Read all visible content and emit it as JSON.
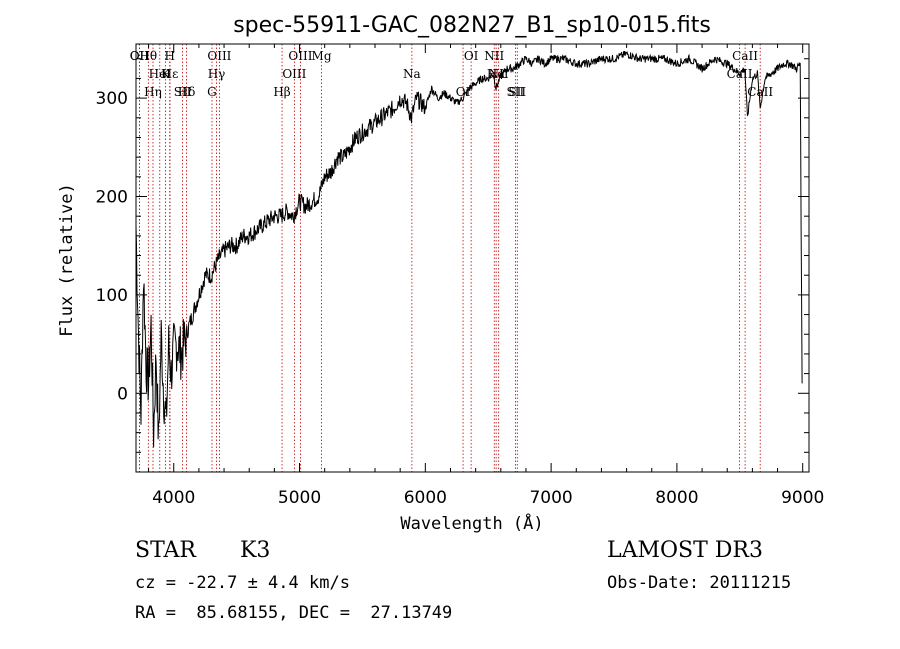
{
  "chart_data": {
    "type": "line",
    "title": "spec-55911-GAC_082N27_B1_sp10-015.fits",
    "xlabel": "Wavelength (Å)",
    "ylabel": "Flux (relative)",
    "xlim": [
      3700,
      9050
    ],
    "ylim": [
      -80,
      355
    ],
    "x_ticks": [
      4000,
      5000,
      6000,
      7000,
      8000,
      9000
    ],
    "y_ticks": [
      0,
      100,
      200,
      300
    ],
    "grid": false,
    "series": [
      {
        "name": "spectrum",
        "x": [
          3700,
          3720,
          3740,
          3760,
          3780,
          3800,
          3820,
          3840,
          3860,
          3880,
          3900,
          3920,
          3940,
          3960,
          3980,
          4000,
          4030,
          4060,
          4100,
          4150,
          4200,
          4250,
          4300,
          4350,
          4400,
          4450,
          4500,
          4550,
          4600,
          4650,
          4700,
          4750,
          4800,
          4850,
          4900,
          4950,
          5000,
          5050,
          5100,
          5150,
          5200,
          5250,
          5300,
          5350,
          5400,
          5450,
          5500,
          5550,
          5600,
          5650,
          5700,
          5750,
          5800,
          5850,
          5890,
          5930,
          6000,
          6050,
          6100,
          6150,
          6200,
          6250,
          6300,
          6350,
          6400,
          6450,
          6500,
          6540,
          6563,
          6590,
          6620,
          6650,
          6700,
          6750,
          6800,
          6850,
          6900,
          6950,
          7000,
          7100,
          7200,
          7300,
          7400,
          7500,
          7600,
          7700,
          7800,
          7900,
          8000,
          8100,
          8200,
          8300,
          8400,
          8500,
          8540,
          8560,
          8600,
          8640,
          8662,
          8700,
          8750,
          8800,
          8850,
          8900,
          8950,
          8980,
          8995
        ],
        "y": [
          170,
          60,
          -20,
          120,
          30,
          10,
          70,
          -40,
          40,
          -50,
          60,
          0,
          -30,
          50,
          20,
          45,
          50,
          40,
          60,
          80,
          100,
          120,
          120,
          135,
          145,
          150,
          150,
          160,
          160,
          165,
          170,
          175,
          180,
          180,
          185,
          180,
          195,
          190,
          195,
          200,
          220,
          225,
          240,
          240,
          250,
          260,
          265,
          270,
          275,
          280,
          285,
          290,
          300,
          295,
          280,
          300,
          290,
          310,
          300,
          305,
          300,
          295,
          300,
          310,
          315,
          320,
          320,
          325,
          310,
          320,
          325,
          330,
          330,
          335,
          340,
          335,
          340,
          335,
          340,
          340,
          335,
          335,
          340,
          340,
          345,
          340,
          340,
          340,
          335,
          340,
          330,
          340,
          335,
          325,
          330,
          280,
          320,
          325,
          290,
          320,
          325,
          330,
          335,
          335,
          330,
          335,
          10
        ],
        "unit": "relative flux"
      }
    ],
    "spectral_lines": [
      {
        "label": "Hθ",
        "wavelength": 3798
      },
      {
        "label": "K",
        "wavelength": 3934
      },
      {
        "label": "Hδ",
        "wavelength": 4102
      },
      {
        "label": "OII",
        "wavelength": 3727
      },
      {
        "label": "HeI",
        "wavelength": 3889
      },
      {
        "label": "SII",
        "wavelength": 4070
      },
      {
        "label": "OIII",
        "wavelength": 4363
      },
      {
        "label": "Hγ",
        "wavelength": 4340
      },
      {
        "label": "G",
        "wavelength": 4304
      },
      {
        "label": "OIII",
        "wavelength": 5007
      },
      {
        "label": "OIII",
        "wavelength": 4959
      },
      {
        "label": "Hβ",
        "wavelength": 4861
      },
      {
        "label": "Mg",
        "wavelength": 5175
      },
      {
        "label": "Na",
        "wavelength": 5893
      },
      {
        "label": "OI",
        "wavelength": 6300
      },
      {
        "label": "OI",
        "wavelength": 6364
      },
      {
        "label": "Hα",
        "wavelength": 6563
      },
      {
        "label": "SII",
        "wavelength": 6716
      },
      {
        "label": "NII",
        "wavelength": 6548
      },
      {
        "label": "NII",
        "wavelength": 6583
      },
      {
        "label": "SII",
        "wavelength": 6731
      },
      {
        "label": "CaII",
        "wavelength": 8542
      },
      {
        "label": "CaII",
        "wavelength": 8498
      },
      {
        "label": "CaII",
        "wavelength": 8662
      },
      {
        "label": "OII",
        "wavelength": 3727
      },
      {
        "label": "Hε",
        "wavelength": 3970
      },
      {
        "label": "Hη",
        "wavelength": 3835
      },
      {
        "label": "H",
        "wavelength": 3968
      }
    ]
  },
  "info": {
    "object_class": "STAR",
    "subclass": "K3",
    "survey": "LAMOST DR3",
    "redshift": "cz = -22.7 ± 4.4 km/s",
    "obs_date": "Obs-Date: 20111215",
    "coords": "RA =  85.68155, DEC =  27.13749"
  }
}
